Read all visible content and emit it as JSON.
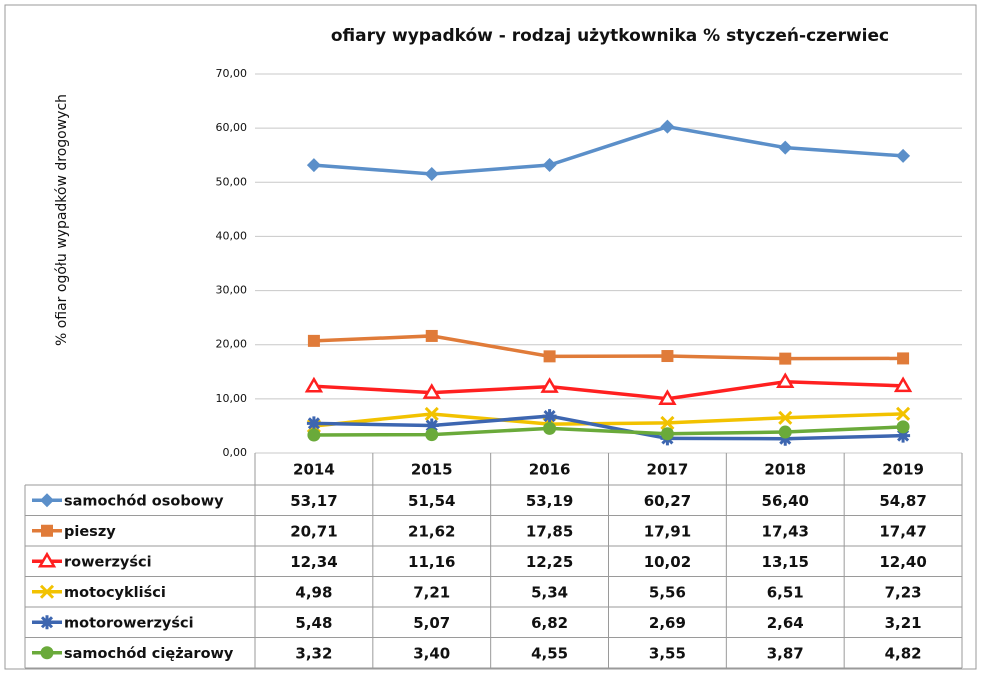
{
  "chart_data": {
    "type": "line",
    "title": "ofiary wypadków - rodzaj użytkownika % styczeń-czerwiec",
    "y_label": "% ofiar ogółu wypadków drogowych",
    "categories": [
      "2014",
      "2015",
      "2016",
      "2017",
      "2018",
      "2019"
    ],
    "ylim": [
      0,
      70
    ],
    "yticks": [
      {
        "value": 0,
        "label": "0,00"
      },
      {
        "value": 10,
        "label": "10,00"
      },
      {
        "value": 20,
        "label": "20,00"
      },
      {
        "value": 30,
        "label": "30,00"
      },
      {
        "value": 40,
        "label": "40,00"
      },
      {
        "value": 50,
        "label": "50,00"
      },
      {
        "value": 60,
        "label": "60,00"
      },
      {
        "value": 70,
        "label": "70,00"
      }
    ],
    "grid": true,
    "series": [
      {
        "name": "samochód osobowy",
        "color": "#5b8fc9",
        "marker": "diamond",
        "values": [
          53.17,
          51.54,
          53.19,
          60.27,
          56.4,
          54.87
        ],
        "value_labels": [
          "53,17",
          "51,54",
          "53,19",
          "60,27",
          "56,40",
          "54,87"
        ]
      },
      {
        "name": "pieszy",
        "color": "#e07b39",
        "marker": "square",
        "values": [
          20.71,
          21.62,
          17.85,
          17.91,
          17.43,
          17.47
        ],
        "value_labels": [
          "20,71",
          "21,62",
          "17,85",
          "17,91",
          "17,43",
          "17,47"
        ]
      },
      {
        "name": "rowerzyści",
        "color": "#ff2020",
        "marker": "triangle",
        "values": [
          12.34,
          11.16,
          12.25,
          10.02,
          13.15,
          12.4
        ],
        "value_labels": [
          "12,34",
          "11,16",
          "12,25",
          "10,02",
          "13,15",
          "12,40"
        ]
      },
      {
        "name": "motocykliści",
        "color": "#f2c200",
        "marker": "x",
        "values": [
          4.98,
          7.21,
          5.34,
          5.56,
          6.51,
          7.23
        ],
        "value_labels": [
          "4,98",
          "7,21",
          "5,34",
          "5,56",
          "6,51",
          "7,23"
        ]
      },
      {
        "name": "motorowerzyści",
        "color": "#3d66b0",
        "marker": "star",
        "values": [
          5.48,
          5.07,
          6.82,
          2.69,
          2.64,
          3.21
        ],
        "value_labels": [
          "5,48",
          "5,07",
          "6,82",
          "2,69",
          "2,64",
          "3,21"
        ]
      },
      {
        "name": "samochód ciężarowy",
        "color": "#6aaa3a",
        "marker": "circle",
        "values": [
          3.32,
          3.4,
          4.55,
          3.55,
          3.87,
          4.82
        ],
        "value_labels": [
          "3,32",
          "3,40",
          "4,55",
          "3,55",
          "3,87",
          "4,82"
        ]
      }
    ]
  }
}
